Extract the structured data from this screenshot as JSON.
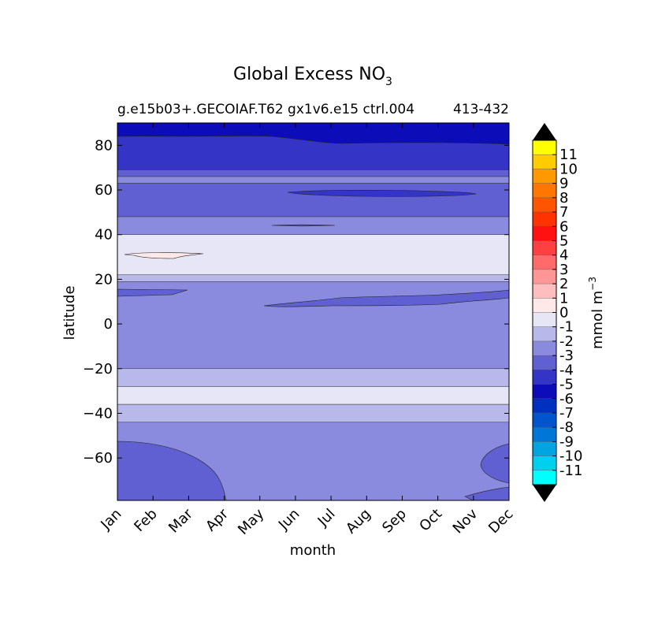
{
  "chart_data": {
    "type": "contour",
    "title_main": "Global Excess NO",
    "title_sub": "3",
    "subtitle_left": "g.e15b03+.GECOIAF.T62 gx1v6.e15 ctrl.004",
    "subtitle_right": "413-432",
    "xlabel": "month",
    "ylabel": "latitude",
    "x_categories": [
      "Jan",
      "Feb",
      "Mar",
      "Apr",
      "May",
      "Jun",
      "Jul",
      "Aug",
      "Sep",
      "Oct",
      "Nov",
      "Dec"
    ],
    "ylim": [
      -79,
      90
    ],
    "y_ticks": [
      "80",
      "60",
      "40",
      "20",
      "0",
      "−20",
      "−40",
      "−60"
    ],
    "y_tick_values": [
      80,
      60,
      40,
      20,
      0,
      -20,
      -40,
      -60
    ],
    "colorbar": {
      "label_main": "mmol m",
      "label_sup": "−3",
      "ticks": [
        "11",
        "10",
        "9",
        "8",
        "7",
        "6",
        "5",
        "4",
        "3",
        "2",
        "1",
        "0",
        "-1",
        "-2",
        "-3",
        "-4",
        "-5",
        "-6",
        "-7",
        "-8",
        "-9",
        "-10",
        "-11"
      ],
      "colors": [
        "#ffff00",
        "#ffcc00",
        "#ff9900",
        "#ff7700",
        "#ff5500",
        "#ff3300",
        "#ff1111",
        "#ff4040",
        "#ff6a6a",
        "#ff9696",
        "#ffbebe",
        "#ffe8e8",
        "#e6e6f7",
        "#b8b8ea",
        "#8a8ade",
        "#6060d2",
        "#3434c6",
        "#0c0cb8",
        "#0030c0",
        "#0055cc",
        "#0077d6",
        "#00a4e0",
        "#00d0ee",
        "#00ffff"
      ]
    },
    "bands": [
      {
        "name": "band-lat-84-90",
        "range_lat": [
          84,
          90
        ],
        "level": "-6",
        "color": "#0c0cb8"
      },
      {
        "name": "band-lat-69-84",
        "range_lat": [
          69,
          84
        ],
        "level": "-5",
        "color": "#3434c6"
      },
      {
        "name": "band-lat-66-69",
        "range_lat": [
          66,
          69
        ],
        "level": "-4",
        "color": "#6060d2"
      },
      {
        "name": "band-lat-63-66",
        "range_lat": [
          63,
          66
        ],
        "level": "-3",
        "color": "#8a8ade"
      },
      {
        "name": "band-lat-48-63",
        "range_lat": [
          48,
          63
        ],
        "level": "-4",
        "color": "#6060d2"
      },
      {
        "name": "band-lat-40-48",
        "range_lat": [
          40,
          48
        ],
        "level": "-3",
        "color": "#8a8ade"
      },
      {
        "name": "band-lat-22-40",
        "range_lat": [
          22,
          40
        ],
        "level": "-1",
        "color": "#e6e6f7"
      },
      {
        "name": "band-lat-19-22",
        "range_lat": [
          19,
          22
        ],
        "level": "-2",
        "color": "#b8b8ea"
      },
      {
        "name": "band-lat-neg20-19",
        "range_lat": [
          -20,
          19
        ],
        "level": "-3",
        "color": "#8a8ade"
      },
      {
        "name": "band-lat-neg28-neg20",
        "range_lat": [
          -28,
          -20
        ],
        "level": "-2",
        "color": "#b8b8ea"
      },
      {
        "name": "band-lat-neg36-neg28",
        "range_lat": [
          -36,
          -28
        ],
        "level": "-1",
        "color": "#e6e6f7"
      },
      {
        "name": "band-lat-neg44-neg36",
        "range_lat": [
          -44,
          -36
        ],
        "level": "-2",
        "color": "#b8b8ea"
      },
      {
        "name": "band-lat-neg79-neg44",
        "range_lat": [
          -79,
          -44
        ],
        "level": "-3",
        "color": "#8a8ade"
      }
    ]
  }
}
